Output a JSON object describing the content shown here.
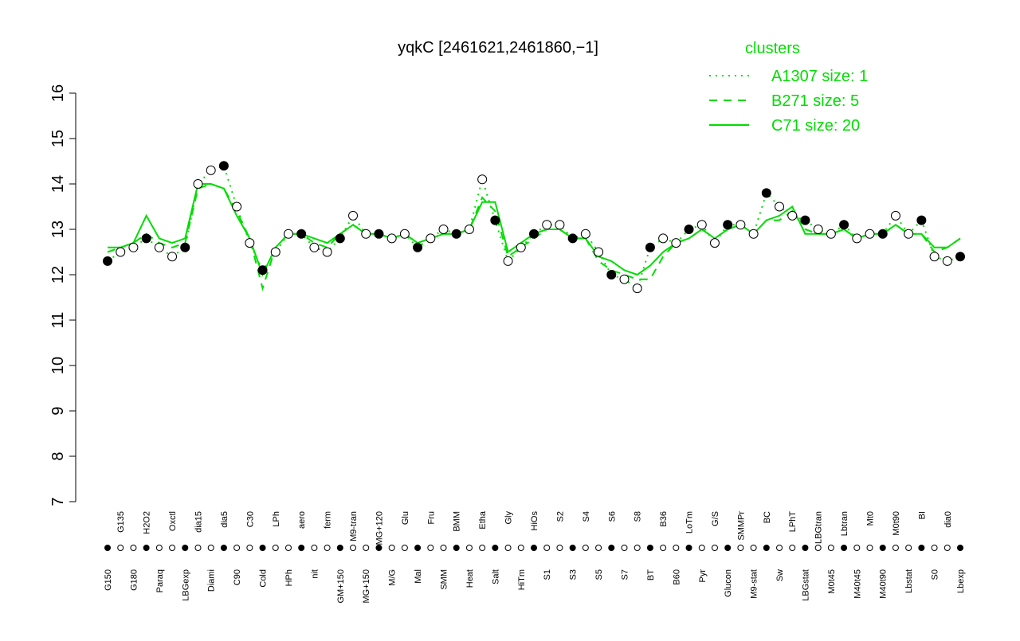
{
  "chart_data": {
    "type": "line",
    "title": "yqkC [2461621,2461860,−1]",
    "legend_title": "clusters",
    "legend_color": "#00dd00",
    "categories": [
      "G150",
      "G135",
      "G180",
      "H2O2",
      "Paraq",
      "Oxctl",
      "LBGexp",
      "dia15",
      "Diami",
      "dia5",
      "C90",
      "C30",
      "Cold",
      "LPh",
      "HPh",
      "aero",
      "nit",
      "ferm",
      "GM+150",
      "M9-tran",
      "MG+150",
      "MG+120",
      "M/G",
      "Glu",
      "Mal",
      "Fru",
      "SMM",
      "BMM",
      "Heat",
      "Etha",
      "Salt",
      "Gly",
      "HiTm",
      "HiOs",
      "S1",
      "S2",
      "S3",
      "S4",
      "S5",
      "S6",
      "S7",
      "S8",
      "BT",
      "B36",
      "B60",
      "LoTm",
      "Pyr",
      "G/S",
      "Glucon",
      "SMMPr",
      "M9-stat",
      "BC",
      "Sw",
      "LPhT",
      "LBGstat",
      "LBGtran",
      "M0t45",
      "Lbtran",
      "M40t45",
      "Mt0",
      "M40t90",
      "M0t90",
      "Lbstat",
      "BI",
      "S0",
      "dia0",
      "Lbexp"
    ],
    "values": [
      12.3,
      12.5,
      12.6,
      12.8,
      12.6,
      12.4,
      12.6,
      14.0,
      14.3,
      14.4,
      13.5,
      12.7,
      12.1,
      12.5,
      12.9,
      12.9,
      12.6,
      12.5,
      12.8,
      13.3,
      12.9,
      12.9,
      12.8,
      12.9,
      12.6,
      12.8,
      13.0,
      12.9,
      13.0,
      14.1,
      13.2,
      12.3,
      12.6,
      12.9,
      13.1,
      13.1,
      12.8,
      12.9,
      12.5,
      12.0,
      11.9,
      11.7,
      12.6,
      12.8,
      12.7,
      13.0,
      13.1,
      12.7,
      13.1,
      13.1,
      12.9,
      13.8,
      13.5,
      13.3,
      13.2,
      13.0,
      12.9,
      13.1,
      12.8,
      12.9,
      12.9,
      13.3,
      12.9,
      13.2,
      12.4,
      12.3,
      12.4
    ],
    "series": [
      {
        "name": "A1307 size: 1",
        "color": "#00dd00",
        "style": "dotted",
        "values": [
          12.3,
          12.5,
          12.6,
          12.8,
          12.6,
          12.4,
          12.6,
          14.0,
          14.3,
          14.4,
          13.5,
          12.7,
          12.1,
          12.5,
          12.9,
          12.9,
          12.6,
          12.5,
          12.8,
          13.3,
          12.9,
          12.9,
          12.8,
          12.9,
          12.6,
          12.8,
          13.0,
          12.9,
          13.0,
          14.1,
          13.2,
          12.3,
          12.6,
          12.9,
          13.1,
          13.1,
          12.8,
          12.9,
          12.5,
          12.0,
          11.9,
          11.7,
          12.6,
          12.8,
          12.7,
          13.0,
          13.1,
          12.7,
          13.1,
          13.1,
          12.9,
          13.8,
          13.5,
          13.3,
          13.2,
          13.0,
          12.9,
          13.1,
          12.8,
          12.9,
          12.9,
          13.3,
          12.9,
          13.2,
          12.4,
          12.3,
          12.4
        ]
      },
      {
        "name": "B271 size: 5",
        "color": "#00dd00",
        "style": "dashed",
        "values": [
          12.5,
          12.6,
          12.7,
          12.9,
          12.7,
          12.6,
          12.7,
          13.9,
          14.0,
          13.9,
          13.4,
          12.8,
          11.7,
          12.6,
          12.9,
          12.9,
          12.7,
          12.6,
          12.9,
          13.1,
          12.9,
          12.9,
          12.8,
          12.9,
          12.7,
          12.8,
          12.9,
          12.9,
          13.0,
          13.7,
          13.4,
          12.4,
          12.6,
          12.8,
          13.0,
          13.0,
          12.8,
          12.8,
          12.3,
          12.1,
          12.0,
          11.9,
          11.9,
          12.4,
          12.7,
          12.8,
          13.0,
          12.8,
          13.0,
          13.1,
          12.9,
          13.2,
          13.2,
          13.4,
          13.0,
          12.9,
          12.9,
          13.0,
          12.8,
          12.9,
          12.9,
          13.1,
          12.9,
          12.9,
          12.5,
          12.6,
          12.8
        ]
      },
      {
        "name": "C71 size: 20",
        "color": "#00dd00",
        "style": "solid",
        "values": [
          12.6,
          12.6,
          12.7,
          13.3,
          12.8,
          12.7,
          12.8,
          14.0,
          14.0,
          13.9,
          13.3,
          12.8,
          12.0,
          12.6,
          12.9,
          12.9,
          12.8,
          12.7,
          12.9,
          13.1,
          12.9,
          12.9,
          12.8,
          12.9,
          12.7,
          12.8,
          12.9,
          12.9,
          13.0,
          13.6,
          13.6,
          12.5,
          12.7,
          12.9,
          13.0,
          13.0,
          12.8,
          12.8,
          12.4,
          12.3,
          12.1,
          12.0,
          12.2,
          12.5,
          12.7,
          12.8,
          13.0,
          12.8,
          13.0,
          13.1,
          12.9,
          13.2,
          13.3,
          13.5,
          12.9,
          12.9,
          12.9,
          13.0,
          12.8,
          12.9,
          12.9,
          13.1,
          12.9,
          12.9,
          12.6,
          12.6,
          12.8
        ]
      }
    ],
    "ylim": [
      7,
      16
    ],
    "yticks": [
      7,
      8,
      9,
      10,
      11,
      12,
      13,
      14,
      15,
      16
    ]
  }
}
